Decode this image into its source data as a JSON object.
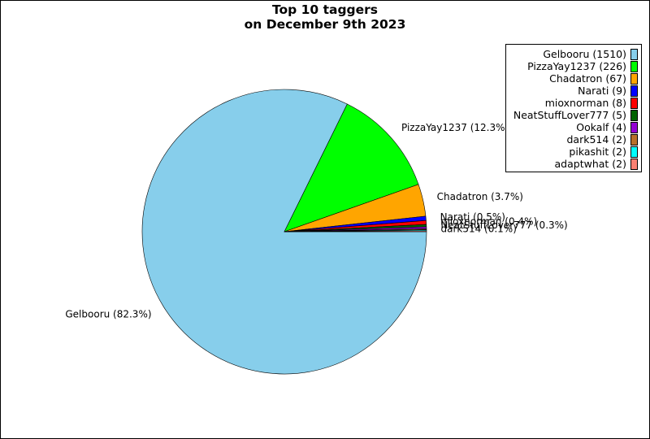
{
  "chart_data": {
    "type": "pie",
    "title": [
      "Top 10 taggers",
      "on December 9th 2023"
    ],
    "slices": [
      {
        "name": "Gelbooru",
        "value": 1510,
        "legend_label": "Gelbooru (1510)",
        "pct_label": "Gelbooru (82.3%)",
        "color": "#87ceeb"
      },
      {
        "name": "PizzaYay1237",
        "value": 226,
        "legend_label": "PizzaYay1237 (226)",
        "pct_label": "PizzaYay1237 (12.3%)",
        "color": "#00ff00"
      },
      {
        "name": "Chadatron",
        "value": 67,
        "legend_label": "Chadatron (67)",
        "pct_label": "Chadatron (3.7%)",
        "color": "#ffa500"
      },
      {
        "name": "Narati",
        "value": 9,
        "legend_label": "Narati (9)",
        "pct_label": "Narati (0.5%)",
        "color": "#0000ff"
      },
      {
        "name": "mioxnorman",
        "value": 8,
        "legend_label": "mioxnorman (8)",
        "pct_label": "mioxnorman (0.4%)",
        "color": "#ff0000"
      },
      {
        "name": "NeatStuffLover777",
        "value": 5,
        "legend_label": "NeatStuffLover777 (5)",
        "pct_label": "NeatStuffLover777 (0.3%)",
        "color": "#006400"
      },
      {
        "name": "Ookalf",
        "value": 4,
        "legend_label": "Ookalf (4)",
        "pct_label": "",
        "color": "#9400d3"
      },
      {
        "name": "dark514",
        "value": 2,
        "legend_label": "dark514 (2)",
        "pct_label": "dark514 (0.1%)",
        "color": "#b8702a"
      },
      {
        "name": "pikashit",
        "value": 2,
        "legend_label": "pikashit (2)",
        "pct_label": "",
        "color": "#00ffff"
      },
      {
        "name": "adaptwhat",
        "value": 2,
        "legend_label": "adaptwhat (2)",
        "pct_label": "",
        "color": "#fa8072"
      }
    ],
    "legend_position": "top-right"
  }
}
